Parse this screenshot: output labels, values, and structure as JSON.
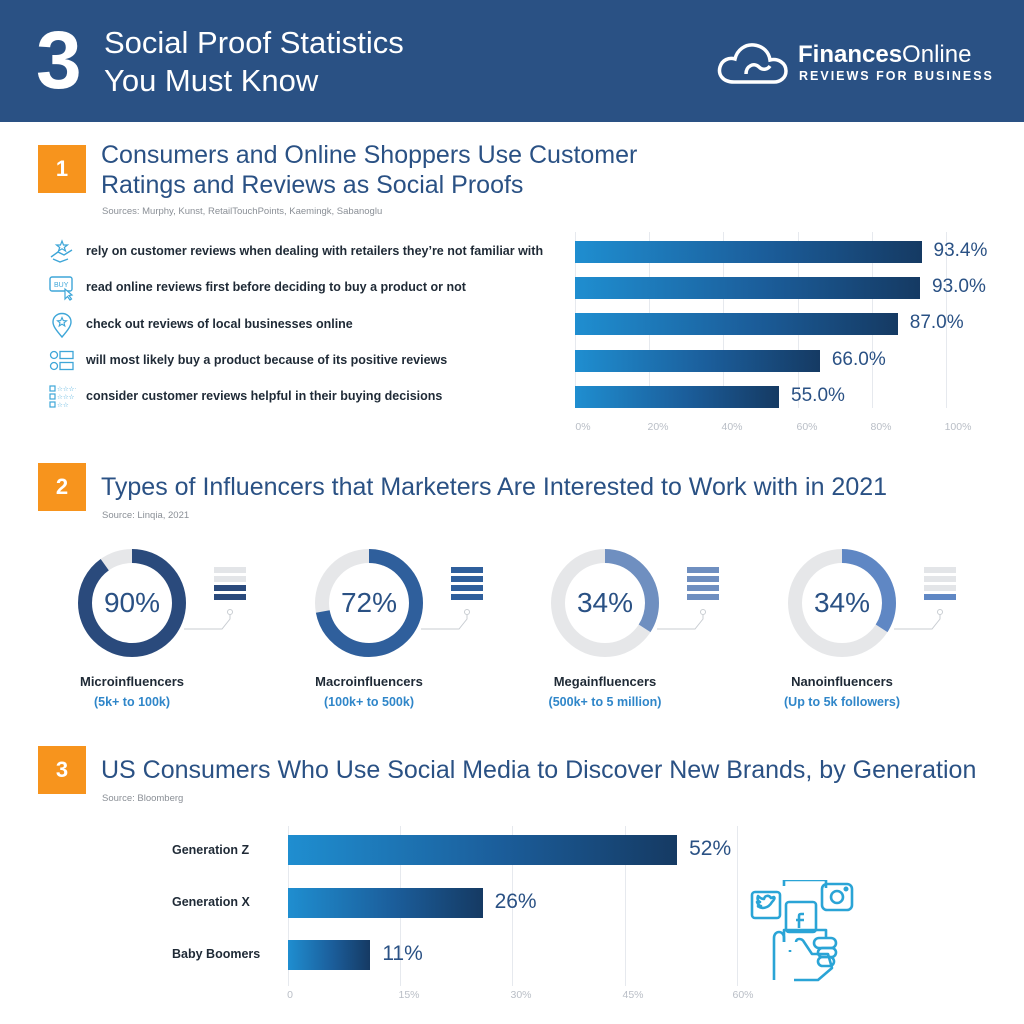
{
  "header": {
    "number": "3",
    "title_line1": "Social Proof Statistics",
    "title_line2": "You Must Know",
    "brand_name_bold": "Finances",
    "brand_name_light": "Online",
    "brand_tagline": "REVIEWS FOR BUSINESS"
  },
  "colors": {
    "header_bg": "#2a5184",
    "accent_orange": "#f7941d",
    "title_blue": "#2a5184",
    "bar_light": "#1f8ed0",
    "bar_dark": "#153a63",
    "sub_blue": "#2f86c9"
  },
  "section1": {
    "number": "1",
    "title_line1": "Consumers and Online Shoppers Use Customer",
    "title_line2": "Ratings and Reviews as Social Proofs",
    "source": "Sources: Murphy, Kunst, RetailTouchPoints, Kaemingk, Sabanoglu",
    "rows": [
      {
        "icon": "handshake-stars-icon",
        "label": "rely on customer reviews when dealing with retailers they’re not familiar with",
        "value_label": "93.4%"
      },
      {
        "icon": "buy-click-icon",
        "label": "read online reviews first before deciding to buy a product or not",
        "value_label": "93.0%"
      },
      {
        "icon": "location-star-icon",
        "label": "check out reviews of local businesses online",
        "value_label": "87.0%"
      },
      {
        "icon": "review-list-icon",
        "label": "will most likely buy a product because of its positive reviews",
        "value_label": "66.0%"
      },
      {
        "icon": "star-rating-icon",
        "label": "consider customer reviews helpful in their buying decisions",
        "value_label": "55.0%"
      }
    ],
    "ticks": [
      "0%",
      "20%",
      "40%",
      "60%",
      "80%",
      "100%"
    ]
  },
  "section2": {
    "number": "2",
    "title": "Types of Influencers that Marketers Are Interested to Work with in 2021",
    "source": "Source: Linqia, 2021",
    "items": [
      {
        "value_label": "90%",
        "name": "Microinfluencers",
        "sub": "(5k+ to 100k)",
        "color": "#2a4a7c",
        "legend_highlight": [
          2,
          3
        ]
      },
      {
        "value_label": "72%",
        "name": "Macroinfluencers",
        "sub": "(100k+ to 500k)",
        "color": "#2f5f9c",
        "legend_highlight": [
          0,
          1,
          2,
          3
        ]
      },
      {
        "value_label": "34%",
        "name": "Megainfluencers",
        "sub": "(500k+ to 5 million)",
        "color": "#6f8fc0",
        "legend_highlight": [
          0,
          1,
          2,
          3
        ]
      },
      {
        "value_label": "34%",
        "name": "Nanoinfluencers",
        "sub": "(Up to 5k followers)",
        "color": "#5f87c4",
        "legend_highlight": [
          3
        ]
      }
    ]
  },
  "section3": {
    "number": "3",
    "title": "US Consumers Who Use Social Media to Discover New Brands, by Generation",
    "source": "Source: Bloomberg",
    "rows": [
      {
        "label": "Generation Z",
        "value_label": "52%"
      },
      {
        "label": "Generation X",
        "value_label": "26%"
      },
      {
        "label": "Baby Boomers",
        "value_label": "11%"
      }
    ],
    "ticks": [
      "0",
      "15%",
      "30%",
      "45%",
      "60%"
    ],
    "illustration": "social-media-hand-icon"
  },
  "chart_data": [
    {
      "type": "bar",
      "orientation": "horizontal",
      "title": "Consumers and Online Shoppers Use Customer Ratings and Reviews as Social Proofs",
      "categories": [
        "rely on customer reviews when dealing with retailers they’re not familiar with",
        "read online reviews first before deciding to buy a product or not",
        "check out reviews of local businesses online",
        "will most likely buy a product because of its positive reviews",
        "consider customer reviews helpful in their buying decisions"
      ],
      "values": [
        93.4,
        93.0,
        87.0,
        66.0,
        55.0
      ],
      "xlim": [
        0,
        100
      ],
      "grid": true
    },
    {
      "type": "pie",
      "subtype": "donut",
      "title": "Types of Influencers that Marketers Are Interested to Work with in 2021",
      "categories": [
        "Microinfluencers",
        "Macroinfluencers",
        "Megainfluencers",
        "Nanoinfluencers"
      ],
      "values": [
        90,
        72,
        34,
        34
      ]
    },
    {
      "type": "bar",
      "orientation": "horizontal",
      "title": "US Consumers Who Use Social Media to Discover New Brands, by Generation",
      "categories": [
        "Generation Z",
        "Generation X",
        "Baby Boomers"
      ],
      "values": [
        52,
        26,
        11
      ],
      "xlim": [
        0,
        60
      ],
      "grid": true
    }
  ]
}
